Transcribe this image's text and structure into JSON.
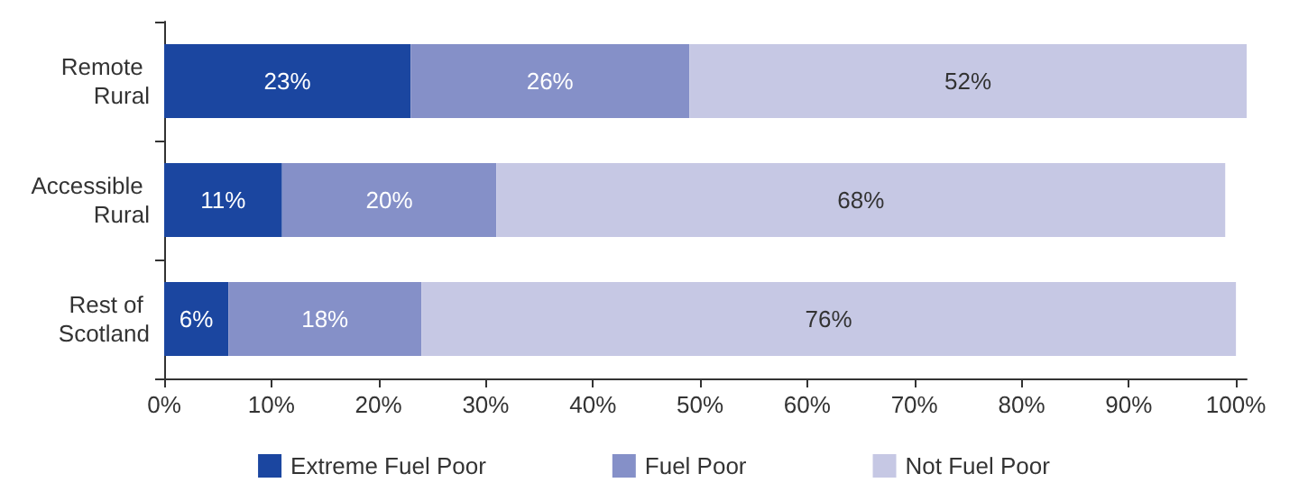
{
  "chart_data": {
    "type": "bar",
    "orientation": "horizontal",
    "stacked": true,
    "categories": [
      "Remote Rural",
      "Accessible Rural",
      "Rest of Scotland"
    ],
    "series": [
      {
        "name": "Extreme Fuel Poor",
        "color": "#1b46a0",
        "values": [
          23,
          11,
          6
        ],
        "value_labels": [
          "23%",
          "11%",
          "6%"
        ]
      },
      {
        "name": "Fuel Poor",
        "color": "#8590c8",
        "values": [
          26,
          20,
          18
        ],
        "value_labels": [
          "26%",
          "20%",
          "18%"
        ]
      },
      {
        "name": "Not Fuel Poor",
        "color": "#c6c8e4",
        "values": [
          52,
          68,
          76
        ],
        "value_labels": [
          "52%",
          "68%",
          "76%"
        ]
      }
    ],
    "xlim": [
      0,
      101
    ],
    "xticks": [
      {
        "value": 0,
        "label": "0%"
      },
      {
        "value": 10,
        "label": "10%"
      },
      {
        "value": 20,
        "label": "20%"
      },
      {
        "value": 30,
        "label": "30%"
      },
      {
        "value": 40,
        "label": "40%"
      },
      {
        "value": 50,
        "label": "50%"
      },
      {
        "value": 60,
        "label": "60%"
      },
      {
        "value": 70,
        "label": "70%"
      },
      {
        "value": 80,
        "label": "80%"
      },
      {
        "value": 90,
        "label": "90%"
      },
      {
        "value": 100,
        "label": "100%"
      }
    ],
    "grid": false,
    "legend": "bottom"
  }
}
